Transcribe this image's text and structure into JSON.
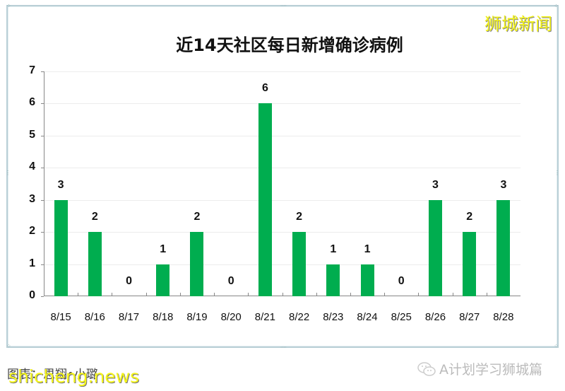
{
  "watermark_top": "狮城新闻",
  "watermark_bottom": "shicheng.news",
  "credit": "图表：思翔•小璐",
  "wechat_account": "A计划学习狮城篇",
  "chart_data": {
    "type": "bar",
    "title": "近14天社区每日新增确诊病例",
    "xlabel": "",
    "ylabel": "",
    "ylim": [
      0,
      7
    ],
    "yticks": [
      0,
      1,
      2,
      3,
      4,
      5,
      6,
      7
    ],
    "grid": true,
    "legend": "none",
    "color": "#00AD4F",
    "categories": [
      "8/15",
      "8/16",
      "8/17",
      "8/18",
      "8/19",
      "8/20",
      "8/21",
      "8/22",
      "8/23",
      "8/24",
      "8/25",
      "8/26",
      "8/27",
      "8/28"
    ],
    "values": [
      3,
      2,
      0,
      1,
      2,
      0,
      6,
      2,
      1,
      1,
      0,
      3,
      2,
      3
    ]
  }
}
